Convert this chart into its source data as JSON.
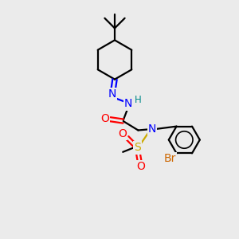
{
  "bg_color": "#ebebeb",
  "bond_color": "#000000",
  "N_color": "#0000ff",
  "O_color": "#ff0000",
  "S_color": "#ccaa00",
  "Br_color": "#cc6600",
  "H_color": "#008888",
  "line_width": 1.6,
  "font_size": 10,
  "small_font": 8.5,
  "xlim": [
    0,
    10
  ],
  "ylim": [
    0,
    10
  ]
}
